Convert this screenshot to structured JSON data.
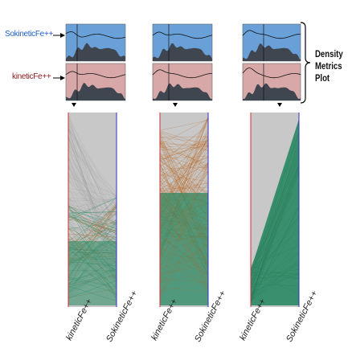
{
  "labels": {
    "top_row": "SokineticFe++",
    "bottom_row": "kineticFe++",
    "brace_line1": "Density",
    "brace_line2": "Metrics",
    "brace_line3": "Plot"
  },
  "colors": {
    "top_label": "#1f5fc7",
    "bottom_label": "#8b1a1a",
    "density_top_bg": "#6aa0d8",
    "density_bottom_bg": "#d8a8a8",
    "density_fill": "#3f4650",
    "parallel_bg": "#c8c8c8",
    "line_orange": "#b8621a",
    "line_green": "#2a8a64",
    "left_axis": "#d03030",
    "right_axis": "#3030c0"
  },
  "panels": [
    {
      "axis_left": "kineticFe++",
      "axis_right": "SokineticFe++",
      "pattern": "cross"
    },
    {
      "axis_left": "kineticFe++",
      "axis_right": "SokineticFe++",
      "pattern": "orange-fan"
    },
    {
      "axis_left": "kineticFe++",
      "axis_right": "SokineticFe++",
      "pattern": "diagonal"
    }
  ]
}
